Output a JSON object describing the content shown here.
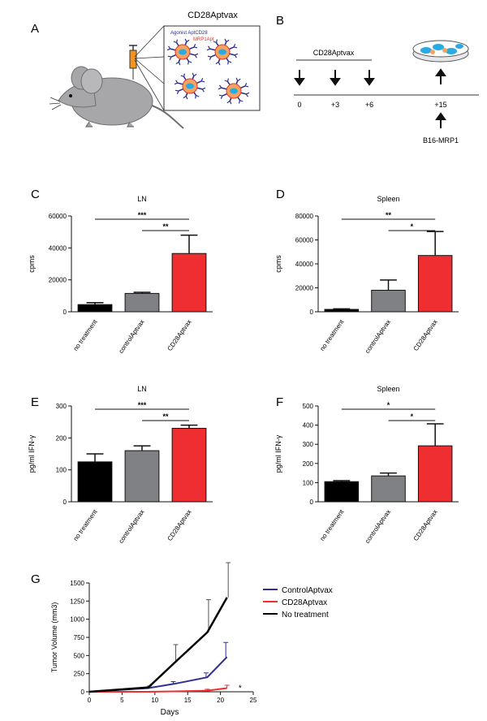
{
  "panel_labels": {
    "a": "A",
    "b": "B",
    "c": "C",
    "d": "D",
    "e": "E",
    "f": "F",
    "g": "G"
  },
  "panel_a": {
    "title": "CD28Aptvax",
    "legend_agonist": "Agonist AptCD28",
    "legend_mrp1": "MRP1Apt",
    "colors": {
      "mouse": "#a7a7a9",
      "agonist": "#2b2f8f",
      "mrp1": "#e8332a",
      "cell": "#f4a460",
      "nucleus": "#29abe2"
    }
  },
  "panel_b": {
    "bar_label": "CD28Aptvax",
    "ticks": [
      "0",
      "+3",
      "+6",
      "+15"
    ],
    "challenge": "B16-MRP1"
  },
  "chart_data": [
    {
      "type": "bar",
      "panel": "C",
      "title": "LN",
      "ylabel": "cpms",
      "xlabel": "",
      "categories": [
        "no treatment",
        "controlAptvax",
        "CD28Aptvax"
      ],
      "values": [
        4500,
        11500,
        36500
      ],
      "errors": [
        1200,
        700,
        11500
      ],
      "colors": [
        "#000000",
        "#808184",
        "#ee2e31"
      ],
      "ylim": [
        0,
        60000
      ],
      "yticks": [
        "0",
        "20000",
        "40000",
        "60000"
      ],
      "significance": [
        {
          "from": 0,
          "to": 2,
          "label": "***"
        },
        {
          "from": 1,
          "to": 2,
          "label": "**"
        }
      ]
    },
    {
      "type": "bar",
      "panel": "D",
      "title": "Spleen",
      "ylabel": "cpms",
      "xlabel": "",
      "categories": [
        "no treatment",
        "controlAptvax",
        "CD28Aptvax"
      ],
      "values": [
        2000,
        18000,
        47000
      ],
      "errors": [
        500,
        8500,
        20000
      ],
      "colors": [
        "#000000",
        "#808184",
        "#ee2e31"
      ],
      "ylim": [
        0,
        80000
      ],
      "yticks": [
        "0",
        "20000",
        "40000",
        "60000",
        "80000"
      ],
      "significance": [
        {
          "from": 0,
          "to": 2,
          "label": "**"
        },
        {
          "from": 1,
          "to": 2,
          "label": "*"
        }
      ]
    },
    {
      "type": "bar",
      "panel": "E",
      "title": "LN",
      "ylabel": "pg/ml IFN-γ",
      "xlabel": "",
      "categories": [
        "no treatment",
        "controlAptvax",
        "CD28Aptvax"
      ],
      "values": [
        125,
        160,
        230
      ],
      "errors": [
        25,
        15,
        10
      ],
      "colors": [
        "#000000",
        "#808184",
        "#ee2e31"
      ],
      "ylim": [
        0,
        300
      ],
      "yticks": [
        "0",
        "100",
        "200",
        "300"
      ],
      "significance": [
        {
          "from": 0,
          "to": 2,
          "label": "***"
        },
        {
          "from": 1,
          "to": 2,
          "label": "**"
        }
      ]
    },
    {
      "type": "bar",
      "panel": "F",
      "title": "Spleen",
      "ylabel": "pg/ml IFN-γ",
      "xlabel": "",
      "categories": [
        "no treatment",
        "controlAptvax",
        "CD28Aptvax"
      ],
      "values": [
        105,
        135,
        292
      ],
      "errors": [
        5,
        15,
        115
      ],
      "colors": [
        "#000000",
        "#808184",
        "#ee2e31"
      ],
      "ylim": [
        0,
        500
      ],
      "yticks": [
        "0",
        "100",
        "200",
        "300",
        "400",
        "500"
      ],
      "significance": [
        {
          "from": 0,
          "to": 2,
          "label": "*"
        },
        {
          "from": 1,
          "to": 2,
          "label": "*"
        }
      ]
    },
    {
      "type": "line",
      "panel": "G",
      "title": "",
      "xlabel": "Days",
      "ylabel": "Tumor Volume (mm3)",
      "xlim": [
        0,
        25
      ],
      "ylim": [
        0,
        1500
      ],
      "xticks": [
        "0",
        "5",
        "10",
        "15",
        "20",
        "25"
      ],
      "yticks": [
        "0",
        "250",
        "500",
        "750",
        "1000",
        "1250",
        "1500"
      ],
      "x": [
        0,
        9,
        13,
        18,
        21
      ],
      "series": [
        {
          "name": "ControlAptvax",
          "color": "#2e3192",
          "values": [
            0,
            50,
            110,
            200,
            480
          ],
          "errors": [
            0,
            10,
            30,
            60,
            200
          ]
        },
        {
          "name": "CD28Aptvax",
          "color": "#ee2e31",
          "values": [
            0,
            0,
            5,
            15,
            50
          ],
          "errors": [
            0,
            0,
            5,
            20,
            40
          ]
        },
        {
          "name": "No treatment",
          "color": "#000000",
          "values": [
            0,
            60,
            400,
            820,
            1300
          ],
          "errors": [
            0,
            20,
            250,
            450,
            480
          ]
        }
      ],
      "annotation": "*",
      "legend_position": "top-right"
    }
  ]
}
